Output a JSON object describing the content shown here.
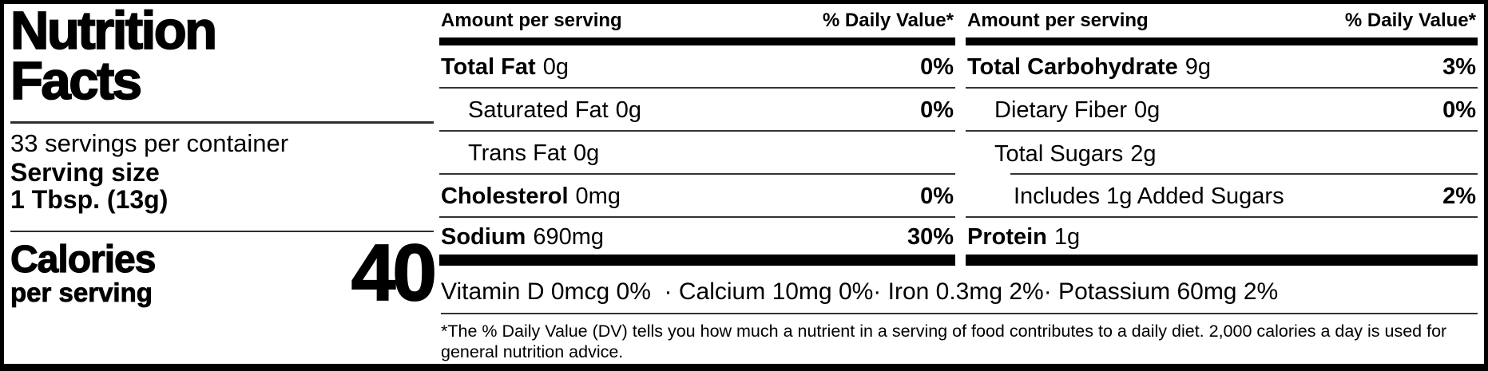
{
  "label": {
    "title_line1": "Nutrition",
    "title_line2": "Facts",
    "servings_per_container": "33 servings per container",
    "serving_size_label": "Serving size",
    "serving_size_value": "1 Tbsp. (13g)",
    "calories_label": "Calories",
    "calories_subtitle": "per serving",
    "calories_value": "40"
  },
  "columns": [
    {
      "header_left": "Amount per serving",
      "header_right": "% Daily Value*",
      "rows": [
        {
          "name": "Total Fat",
          "amount": "0g",
          "dv": "0%"
        },
        {
          "name": "Saturated Fat",
          "amount": "0g",
          "dv": "0%"
        },
        {
          "name": "Trans Fat",
          "amount": "0g",
          "dv": ""
        },
        {
          "name": "Cholesterol",
          "amount": "0mg",
          "dv": "0%"
        },
        {
          "name": "Sodium",
          "amount": "690mg",
          "dv": "30%"
        }
      ]
    },
    {
      "header_left": "Amount per serving",
      "header_right": "% Daily Value*",
      "rows": [
        {
          "name": "Total Carbohydrate",
          "amount": "9g",
          "dv": "3%"
        },
        {
          "name": "Dietary Fiber",
          "amount": "0g",
          "dv": "0%"
        },
        {
          "name": "Total Sugars",
          "amount": "2g",
          "dv": ""
        },
        {
          "name": "Includes 1g Added Sugars",
          "amount": "",
          "dv": "2%"
        },
        {
          "name": "Protein",
          "amount": "1g",
          "dv": ""
        }
      ]
    }
  ],
  "micronutrients": "Vitamin D 0mcg 0%  · Calcium 10mg 0%· Iron 0.3mg 2%· Potassium 60mg 2%",
  "footnote": "*The % Daily Value (DV) tells you how much a nutrient in a serving of food contributes to a daily diet. 2,000 calories a day is used for general nutrition advice.",
  "colors": {
    "text": "#000000",
    "hairline": "#333333",
    "bar": "#000000",
    "background": "#ffffff"
  }
}
